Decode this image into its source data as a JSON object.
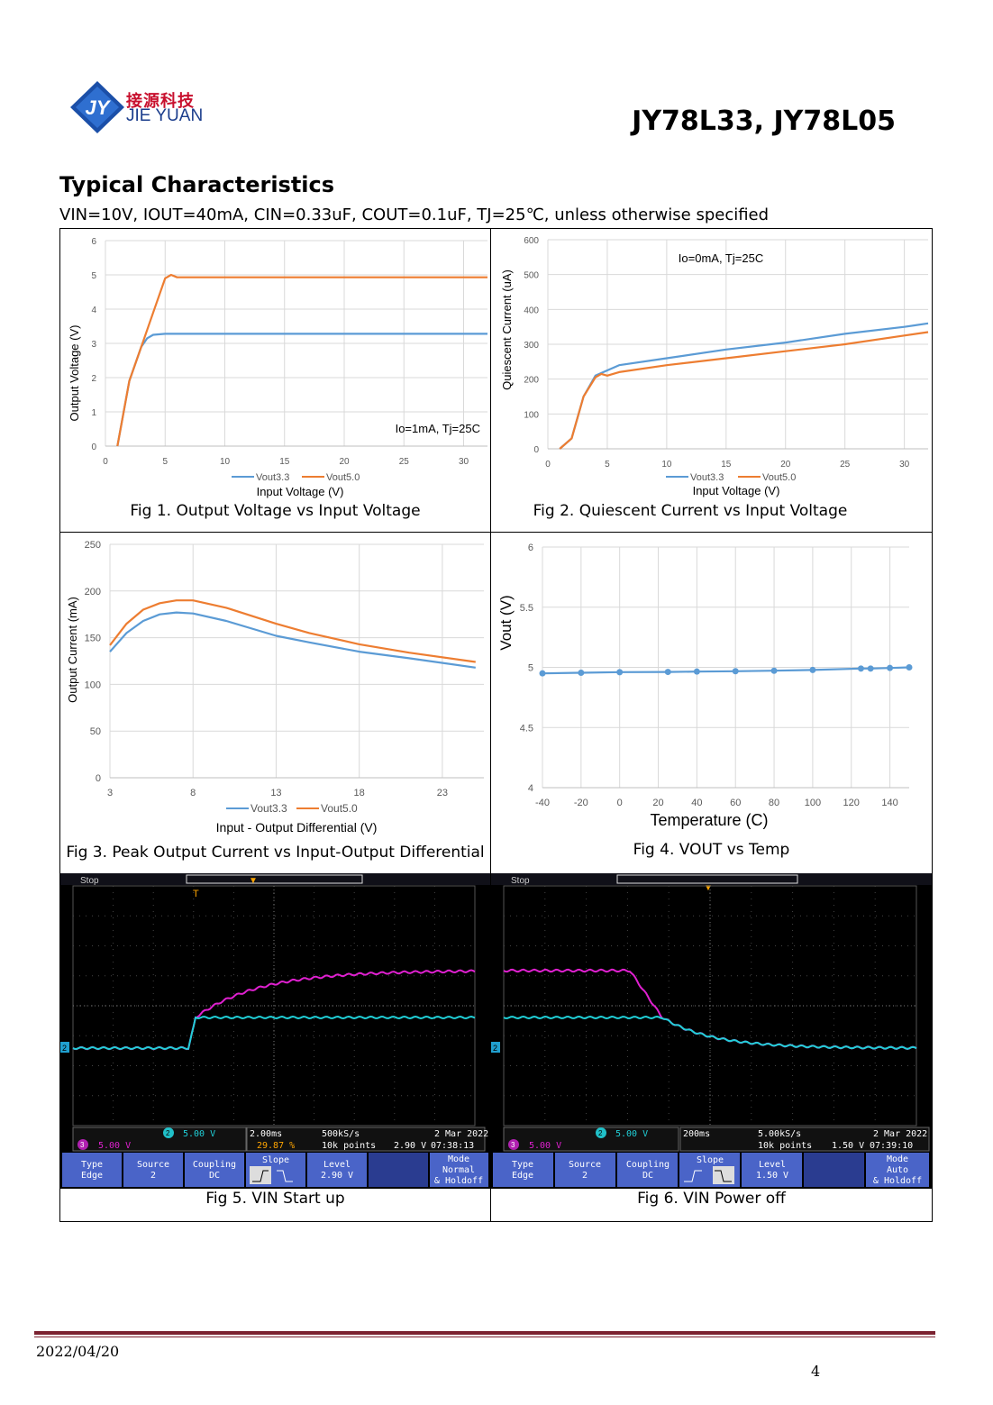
{
  "header": {
    "logo_cn": "接源科技",
    "logo_en": "JIE YUAN",
    "logo_mark": "JY",
    "part_number": "JY78L33, JY78L05"
  },
  "section": {
    "title": "Typical Characteristics",
    "conditions": "VIN=10V, IOUT=40mA, CIN=0.33uF, COUT=0.1uF, TJ=25℃, unless otherwise specified"
  },
  "figures": {
    "fig1": {
      "caption": "Fig 1. Output Voltage vs Input Voltage",
      "annotation": "Io=1mA, Tj=25C"
    },
    "fig2": {
      "caption": "Fig 2. Quiescent Current vs Input Voltage",
      "annotation": "Io=0mA, Tj=25C"
    },
    "fig3": {
      "caption": "Fig 3. Peak Output Current vs Input-Output Differential"
    },
    "fig4": {
      "caption": "Fig 4. VOUT vs Temp"
    },
    "fig5": {
      "caption": "Fig 5. VIN Start up"
    },
    "fig6": {
      "caption": "Fig 6. VIN Power off"
    }
  },
  "colors": {
    "series_blue": "#5b9bd5",
    "series_orange": "#ed7d31",
    "scope_magenta": "#e020d0",
    "scope_cyan": "#20d0d8",
    "footer_rule": "#7b2230"
  },
  "chart_data": [
    {
      "type": "line",
      "id": "fig1",
      "xlabel": "Input Voltage (V)",
      "ylabel": "Output Voltage (V)",
      "xlim": [
        0,
        32
      ],
      "ylim": [
        0,
        6
      ],
      "xticks": [
        0,
        5,
        10,
        15,
        20,
        25,
        30
      ],
      "yticks": [
        0,
        1,
        2,
        3,
        4,
        5,
        6
      ],
      "series": [
        {
          "name": "Vout3.3",
          "x": [
            1,
            2,
            3,
            3.5,
            4,
            5,
            10,
            32
          ],
          "y": [
            0,
            1.9,
            2.9,
            3.15,
            3.25,
            3.28,
            3.28,
            3.28
          ]
        },
        {
          "name": "Vout5.0",
          "x": [
            1,
            2,
            3,
            4,
            5,
            5.5,
            6,
            10,
            32
          ],
          "y": [
            0,
            1.9,
            2.9,
            3.9,
            4.9,
            5.0,
            4.93,
            4.93,
            4.93
          ]
        }
      ]
    },
    {
      "type": "line",
      "id": "fig2",
      "xlabel": "Input Voltage (V)",
      "ylabel": "Quiescent Current (uA)",
      "xlim": [
        0,
        32
      ],
      "ylim": [
        0,
        600
      ],
      "xticks": [
        0,
        5,
        10,
        15,
        20,
        25,
        30
      ],
      "yticks": [
        0,
        100,
        200,
        300,
        400,
        500,
        600
      ],
      "series": [
        {
          "name": "Vout3.3",
          "x": [
            1,
            2,
            3,
            4,
            5,
            6,
            10,
            15,
            20,
            25,
            30,
            32
          ],
          "y": [
            0,
            30,
            150,
            210,
            225,
            240,
            260,
            285,
            305,
            330,
            350,
            360
          ]
        },
        {
          "name": "Vout5.0",
          "x": [
            1,
            2,
            3,
            4,
            4.5,
            5,
            6,
            10,
            15,
            20,
            25,
            30,
            32
          ],
          "y": [
            0,
            30,
            150,
            205,
            215,
            210,
            220,
            240,
            260,
            280,
            300,
            325,
            335
          ]
        }
      ]
    },
    {
      "type": "line",
      "id": "fig3",
      "xlabel": "Input - Output Differential (V)",
      "ylabel": "Output Current (mA)",
      "xlim": [
        3,
        25.5
      ],
      "ylim": [
        0,
        250
      ],
      "xticks": [
        3,
        8,
        13,
        18,
        23
      ],
      "yticks": [
        0,
        50,
        100,
        150,
        200,
        250
      ],
      "series": [
        {
          "name": "Vout3.3",
          "x": [
            3,
            4,
            5,
            6,
            7,
            8,
            10,
            13,
            15,
            18,
            21,
            25
          ],
          "y": [
            135,
            155,
            168,
            175,
            177,
            176,
            168,
            152,
            145,
            135,
            128,
            118
          ]
        },
        {
          "name": "Vout5.0",
          "x": [
            3,
            4,
            5,
            6,
            7,
            8,
            10,
            13,
            15,
            18,
            21,
            25
          ],
          "y": [
            142,
            165,
            180,
            187,
            190,
            190,
            182,
            165,
            155,
            143,
            134,
            124
          ]
        }
      ]
    },
    {
      "type": "line",
      "id": "fig4",
      "xlabel": "Temperature (C)",
      "ylabel": "Vout (V)",
      "xlim": [
        -40,
        150
      ],
      "ylim": [
        4,
        6
      ],
      "xticks": [
        -40,
        -20,
        0,
        20,
        40,
        60,
        80,
        100,
        120,
        140
      ],
      "yticks": [
        4,
        4.5,
        5,
        5.5,
        6
      ],
      "series": [
        {
          "name": "Vout",
          "x": [
            -40,
            -20,
            0,
            25,
            40,
            60,
            80,
            100,
            125,
            130,
            140,
            150
          ],
          "y": [
            4.95,
            4.955,
            4.96,
            4.962,
            4.965,
            4.968,
            4.972,
            4.978,
            4.99,
            4.99,
            4.995,
            5.0
          ]
        }
      ]
    }
  ],
  "scope5": {
    "status": "Stop",
    "ch3": "5.00 V",
    "ch2": "5.00 V",
    "timebase": "2.00ms",
    "position": "29.87 %",
    "sample_rate": "500kS/s",
    "points": "10k points",
    "trig_level": "2.90 V",
    "date": "2 Mar 2022",
    "time": "07:38:13",
    "menu": {
      "type_label": "Type",
      "type_value": "Edge",
      "source_label": "Source",
      "source_value": "2",
      "coupling_label": "Coupling",
      "coupling_value": "DC",
      "slope_label": "Slope",
      "level_label": "Level",
      "level_value": "2.90 V",
      "mode_label": "Mode",
      "mode_value": "Normal",
      "holdoff": "& Holdoff"
    }
  },
  "scope6": {
    "status": "Stop",
    "ch3": "5.00 V",
    "ch2": "5.00 V",
    "timebase": "200ms",
    "sample_rate": "5.00kS/s",
    "points": "10k points",
    "trig_level": "1.50 V",
    "date": "2 Mar 2022",
    "time": "07:39:10",
    "menu": {
      "type_label": "Type",
      "type_value": "Edge",
      "source_label": "Source",
      "source_value": "2",
      "coupling_label": "Coupling",
      "coupling_value": "DC",
      "slope_label": "Slope",
      "level_label": "Level",
      "level_value": "1.50 V",
      "mode_label": "Mode",
      "mode_value": "Auto",
      "holdoff": "& Holdoff"
    }
  },
  "footer": {
    "date": "2022/04/20",
    "page": "4"
  }
}
